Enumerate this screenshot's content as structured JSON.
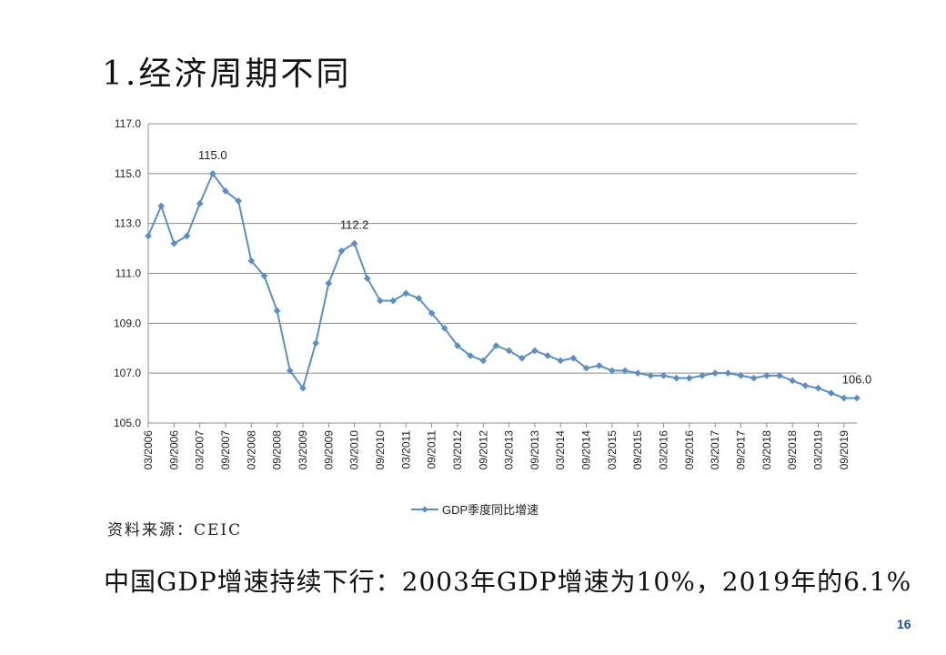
{
  "slide": {
    "title": "1.经济周期不同",
    "source": "资料来源：CEIC",
    "conclusion": "中国GDP增速持续下行：2003年GDP增速为10%，2019年的6.1%",
    "page_number": "16"
  },
  "chart_data": {
    "type": "line",
    "title": "",
    "xlabel": "",
    "ylabel": "",
    "ylim": [
      105.0,
      117.0
    ],
    "yticks": [
      "105.0",
      "107.0",
      "109.0",
      "111.0",
      "113.0",
      "115.0",
      "117.0"
    ],
    "xtick_labels": [
      "03/2006",
      "09/2006",
      "03/2007",
      "09/2007",
      "03/2008",
      "09/2008",
      "03/2009",
      "09/2009",
      "03/2010",
      "09/2010",
      "03/2011",
      "09/2011",
      "03/2012",
      "09/2012",
      "03/2013",
      "09/2013",
      "03/2014",
      "09/2014",
      "03/2015",
      "09/2015",
      "03/2016",
      "09/2016",
      "03/2017",
      "09/2017",
      "03/2018",
      "09/2018",
      "03/2019",
      "09/2019"
    ],
    "grid": true,
    "legend_position": "bottom",
    "line_color": "#5b8fc4",
    "series": [
      {
        "name": "GDP季度同比增速",
        "x": [
          "03/2006",
          "06/2006",
          "09/2006",
          "12/2006",
          "03/2007",
          "06/2007",
          "09/2007",
          "12/2007",
          "03/2008",
          "06/2008",
          "09/2008",
          "12/2008",
          "03/2009",
          "06/2009",
          "09/2009",
          "12/2009",
          "03/2010",
          "06/2010",
          "09/2010",
          "12/2010",
          "03/2011",
          "06/2011",
          "09/2011",
          "12/2011",
          "03/2012",
          "06/2012",
          "09/2012",
          "12/2012",
          "03/2013",
          "06/2013",
          "09/2013",
          "12/2013",
          "03/2014",
          "06/2014",
          "09/2014",
          "12/2014",
          "03/2015",
          "06/2015",
          "09/2015",
          "12/2015",
          "03/2016",
          "06/2016",
          "09/2016",
          "12/2016",
          "03/2017",
          "06/2017",
          "09/2017",
          "12/2017",
          "03/2018",
          "06/2018",
          "09/2018",
          "12/2018",
          "03/2019",
          "06/2019",
          "09/2019",
          "12/2019"
        ],
        "values": [
          112.5,
          113.7,
          112.2,
          112.5,
          113.8,
          115.0,
          114.3,
          113.9,
          111.5,
          110.9,
          109.5,
          107.1,
          106.4,
          108.2,
          110.6,
          111.9,
          112.2,
          110.8,
          109.9,
          109.9,
          110.2,
          110.0,
          109.4,
          108.8,
          108.1,
          107.7,
          107.5,
          108.1,
          107.9,
          107.6,
          107.9,
          107.7,
          107.5,
          107.6,
          107.2,
          107.3,
          107.1,
          107.1,
          107.0,
          106.9,
          106.9,
          106.8,
          106.8,
          106.9,
          107.0,
          107.0,
          106.9,
          106.8,
          106.9,
          106.9,
          106.7,
          106.5,
          106.4,
          106.2,
          106.0,
          106.0
        ]
      }
    ],
    "annotations": [
      {
        "index": 5,
        "label": "115.0"
      },
      {
        "index": 16,
        "label": "112.2"
      },
      {
        "index": 55,
        "label": "106.0"
      }
    ]
  }
}
